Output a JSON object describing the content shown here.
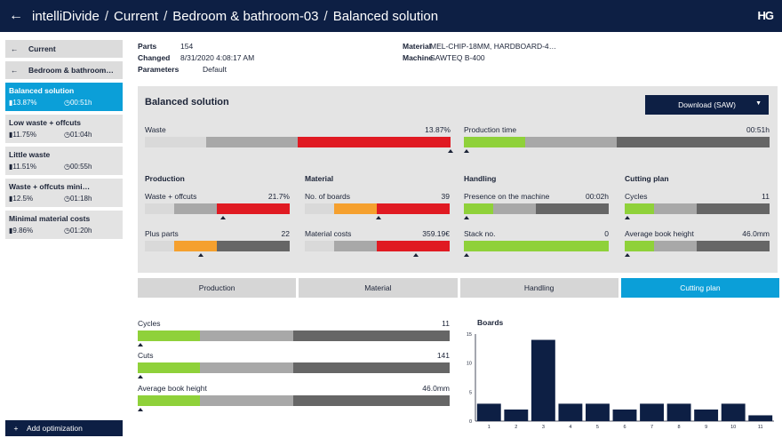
{
  "header": {
    "back_icon": "arrow-left-icon",
    "crumbs": [
      "intelliDivide",
      "Current",
      "Bedroom & bathroom-03",
      "Balanced solution"
    ],
    "separator": "/",
    "logo": "HG"
  },
  "sidebar": {
    "nav": [
      {
        "arrow": "←",
        "label": "Current"
      },
      {
        "arrow": "←",
        "label": "Bedroom & bathroom…"
      }
    ],
    "items": [
      {
        "name": "Balanced solution",
        "waste": "13.87%",
        "time": "00:51h",
        "active": true
      },
      {
        "name": "Low waste + offcuts",
        "waste": "11.75%",
        "time": "01:04h"
      },
      {
        "name": "Little waste",
        "waste": "11.51%",
        "time": "00:55h"
      },
      {
        "name": "Waste + offcuts mini…",
        "waste": "12.5%",
        "time": "01:18h"
      },
      {
        "name": "Minimal material costs",
        "waste": "9.86%",
        "time": "01:20h"
      }
    ],
    "add_label": "Add optimization",
    "add_icon": "+"
  },
  "info": {
    "parts_label": "Parts",
    "parts": "154",
    "changed_label": "Changed",
    "changed": "8/31/2020 4:08:17 AM",
    "params_label": "Parameters",
    "params": "Default",
    "material_label": "Material",
    "material": "MEL-CHIP-18MM, HARDBOARD-4…",
    "machine_label": "Machine",
    "machine": "SAWTEQ B-400"
  },
  "panel": {
    "title": "Balanced solution",
    "download": "Download (SAW)",
    "waste_label": "Waste",
    "waste_value": "13.87%",
    "time_label": "Production time",
    "time_value": "00:51h",
    "sections": {
      "production": "Production",
      "material": "Material",
      "handling": "Handling",
      "cutting": "Cutting plan"
    },
    "metrics": {
      "waste_offcuts": {
        "label": "Waste + offcuts",
        "value": "21.7%"
      },
      "plus_parts": {
        "label": "Plus parts",
        "value": "22"
      },
      "boards": {
        "label": "No. of boards",
        "value": "39"
      },
      "material_costs": {
        "label": "Material costs",
        "value": "359.19€"
      },
      "presence": {
        "label": "Presence on the machine",
        "value": "00:02h"
      },
      "stack": {
        "label": "Stack no.",
        "value": "0"
      },
      "cycles": {
        "label": "Cycles",
        "value": "11"
      },
      "book_height": {
        "label": "Average book height",
        "value": "46.0mm"
      }
    }
  },
  "tabs": [
    "Production",
    "Material",
    "Handling",
    "Cutting plan"
  ],
  "active_tab": "Cutting plan",
  "cutting_plan": {
    "cycles": {
      "label": "Cycles",
      "value": "11"
    },
    "cuts": {
      "label": "Cuts",
      "value": "141"
    },
    "book_height": {
      "label": "Average book height",
      "value": "46.0mm"
    }
  },
  "colors": {
    "navy": "#0d1f44",
    "blue": "#0b9fd8",
    "red": "#e01a22",
    "orange": "#f5a02e",
    "green": "#8fd13a",
    "light": "#d9d9d9",
    "mid": "#a8a8a8",
    "dark": "#666666"
  },
  "chart_data": {
    "type": "bar",
    "title": "Boards",
    "categories": [
      "1",
      "2",
      "3",
      "4",
      "5",
      "6",
      "7",
      "8",
      "9",
      "10",
      "11"
    ],
    "values": [
      3,
      2,
      14,
      3,
      3,
      2,
      3,
      3,
      2,
      3,
      1
    ],
    "ylim": [
      0,
      15
    ],
    "yticks": [
      0,
      5,
      10,
      15
    ],
    "grid": false
  }
}
